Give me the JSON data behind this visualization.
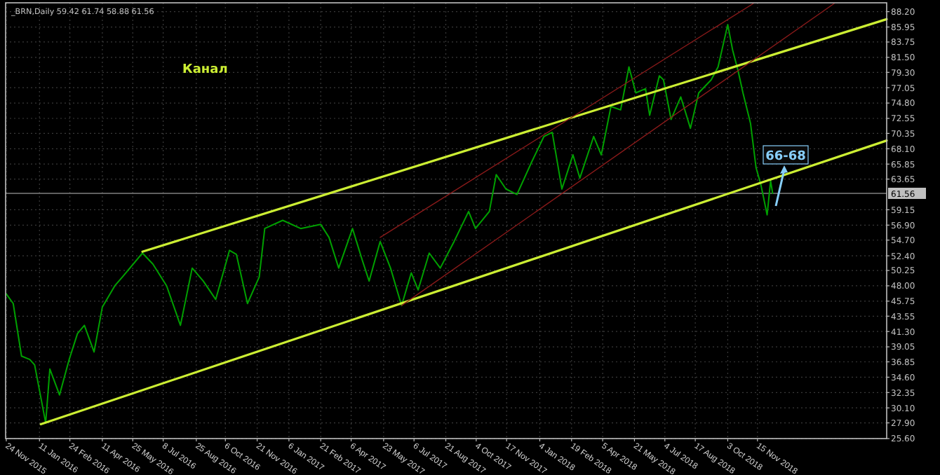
{
  "chart_data": {
    "type": "line",
    "title": "_BRN,Daily  59.42 61.74 58.88 61.56",
    "xlim": [
      "2015-11-23",
      "2019-05-21"
    ],
    "xticks": [
      {
        "value": "2015-11-24",
        "label": "24 Nov 2015"
      },
      {
        "value": "2016-01-11",
        "label": "11 Jan 2016"
      },
      {
        "value": "2016-02-24",
        "label": "24 Feb 2016"
      },
      {
        "value": "2016-04-11",
        "label": "11 Apr 2016"
      },
      {
        "value": "2016-05-25",
        "label": "25 May 2016"
      },
      {
        "value": "2016-07-08",
        "label": "8 Jul 2016"
      },
      {
        "value": "2016-08-25",
        "label": "25 Aug 2016"
      },
      {
        "value": "2016-10-06",
        "label": "6 Oct 2016"
      },
      {
        "value": "2016-11-21",
        "label": "21 Nov 2016"
      },
      {
        "value": "2017-01-06",
        "label": "6 Jan 2017"
      },
      {
        "value": "2017-02-21",
        "label": "21 Feb 2017"
      },
      {
        "value": "2017-04-06",
        "label": "6 Apr 2017"
      },
      {
        "value": "2017-05-23",
        "label": "23 May 2017"
      },
      {
        "value": "2017-07-06",
        "label": "6 Jul 2017"
      },
      {
        "value": "2017-08-21",
        "label": "21 Aug 2017"
      },
      {
        "value": "2017-10-04",
        "label": "4 Oct 2017"
      },
      {
        "value": "2017-11-17",
        "label": "17 Nov 2017"
      },
      {
        "value": "2018-01-04",
        "label": "4 Jan 2018"
      },
      {
        "value": "2018-02-19",
        "label": "19 Feb 2018"
      },
      {
        "value": "2018-04-05",
        "label": "5 Apr 2018"
      },
      {
        "value": "2018-05-21",
        "label": "21 May 2018"
      },
      {
        "value": "2018-07-04",
        "label": "4 Jul 2018"
      },
      {
        "value": "2018-08-17",
        "label": "17 Aug 2018"
      },
      {
        "value": "2018-10-03",
        "label": "3 Oct 2018"
      },
      {
        "value": "2018-11-15",
        "label": "15 Nov 2018"
      }
    ],
    "ylim": [
      25.6,
      89.5
    ],
    "yticks": [
      {
        "value": 25.6,
        "label": "25.60"
      },
      {
        "value": 27.9,
        "label": "27.90"
      },
      {
        "value": 30.1,
        "label": "30.10"
      },
      32.35,
      {
        "value": 34.6,
        "label": "34.60"
      },
      36.85,
      39.05,
      {
        "value": 41.3,
        "label": "41.30"
      },
      43.55,
      45.75,
      {
        "value": 48,
        "label": "48.00"
      },
      50.25,
      {
        "value": 52.4,
        "label": "52.40"
      },
      {
        "value": 54.7,
        "label": "54.70"
      },
      {
        "value": 56.9,
        "label": "56.90"
      },
      59.15,
      63.65,
      65.85,
      {
        "value": 68.1,
        "label": "68.10"
      },
      70.35,
      72.55,
      {
        "value": 74.8,
        "label": "74.80"
      },
      77.05,
      {
        "value": 79.3,
        "label": "79.30"
      },
      {
        "value": 81.5,
        "label": "81.50"
      },
      83.75,
      85.95,
      {
        "value": 88.2,
        "label": "88.20"
      }
    ],
    "grid": true,
    "ref_lines": [
      {
        "axis": "y",
        "value": 61.56,
        "label": "61.56",
        "color": "#808080"
      }
    ],
    "annotations": [
      "Канал",
      "66-68"
    ],
    "series": [
      {
        "color": "#00a000",
        "x": [
          "2015-11-24",
          "2015-12-04",
          "2015-12-16",
          "2015-12-28",
          "2016-01-04",
          "2016-01-20",
          "2016-01-26",
          "2016-02-09",
          "2016-02-23",
          "2016-03-06",
          "2016-03-16",
          "2016-03-30",
          "2016-04-11",
          "2016-04-29",
          "2016-05-10",
          "2016-06-08",
          "2016-06-23",
          "2016-07-13",
          "2016-08-02",
          "2016-08-19",
          "2016-09-04",
          "2016-09-22",
          "2016-10-12",
          "2016-10-22",
          "2016-11-07",
          "2016-11-24",
          "2016-12-02",
          "2016-12-28",
          "2017-01-23",
          "2017-02-21",
          "2017-03-05",
          "2017-03-19",
          "2017-04-08",
          "2017-04-22",
          "2017-05-02",
          "2017-05-18",
          "2017-06-02",
          "2017-06-18",
          "2017-07-02",
          "2017-07-12",
          "2017-07-28",
          "2017-08-13",
          "2017-09-02",
          "2017-09-23",
          "2017-10-03",
          "2017-10-23",
          "2017-11-02",
          "2017-11-16",
          "2017-12-02",
          "2017-12-23",
          "2018-01-10",
          "2018-01-22",
          "2018-02-05",
          "2018-02-21",
          "2018-03-03",
          "2018-03-23",
          "2018-04-03",
          "2018-04-17",
          "2018-05-01",
          "2018-05-13",
          "2018-05-23",
          "2018-06-06",
          "2018-06-12",
          "2018-06-26",
          "2018-07-02",
          "2018-07-13",
          "2018-07-27",
          "2018-08-10",
          "2018-08-22",
          "2018-09-09",
          "2018-09-19",
          "2018-10-03",
          "2018-10-10",
          "2018-10-18",
          "2018-10-25",
          "2018-11-05",
          "2018-11-13",
          "2018-11-20",
          "2018-11-29",
          "2018-12-04",
          "2018-12-07"
        ],
        "values": [
          46.8,
          45.4,
          37.7,
          37.2,
          36.4,
          27.9,
          35.8,
          32.0,
          37.2,
          41.0,
          42.2,
          38.3,
          44.9,
          48.0,
          49.3,
          52.8,
          51.2,
          48.0,
          42.2,
          50.6,
          48.7,
          46.0,
          53.2,
          52.6,
          45.4,
          49.3,
          56.4,
          57.6,
          56.4,
          57.0,
          55.1,
          50.6,
          56.4,
          51.8,
          48.7,
          54.5,
          50.6,
          45.1,
          49.9,
          47.4,
          52.8,
          50.6,
          54.5,
          58.9,
          56.4,
          58.9,
          64.3,
          62.2,
          61.4,
          66.1,
          69.9,
          70.5,
          62.2,
          67.2,
          63.8,
          69.9,
          67.2,
          74.3,
          73.8,
          80.1,
          76.3,
          76.9,
          73.0,
          78.8,
          78.2,
          72.4,
          75.7,
          71.1,
          76.3,
          78.2,
          80.1,
          86.3,
          82.6,
          79.5,
          76.3,
          71.8,
          65.3,
          62.8,
          58.4,
          63.4,
          61.56
        ]
      },
      {
        "color": "#ccee33",
        "x": [
          "2016-06-08",
          "2019-05-21"
        ],
        "values": [
          53.0,
          87.1
        ]
      },
      {
        "color": "#ccee33",
        "x": [
          "2016-01-13",
          "2019-05-21"
        ],
        "values": [
          27.7,
          69.3
        ]
      },
      {
        "color": "#8b1a1a",
        "x": [
          "2017-05-18",
          "2018-11-09"
        ],
        "values": [
          55.1,
          89.4
        ]
      },
      {
        "color": "#8b1a1a",
        "x": [
          "2017-06-18",
          "2019-03-06"
        ],
        "values": [
          45.1,
          89.4
        ]
      }
    ]
  }
}
